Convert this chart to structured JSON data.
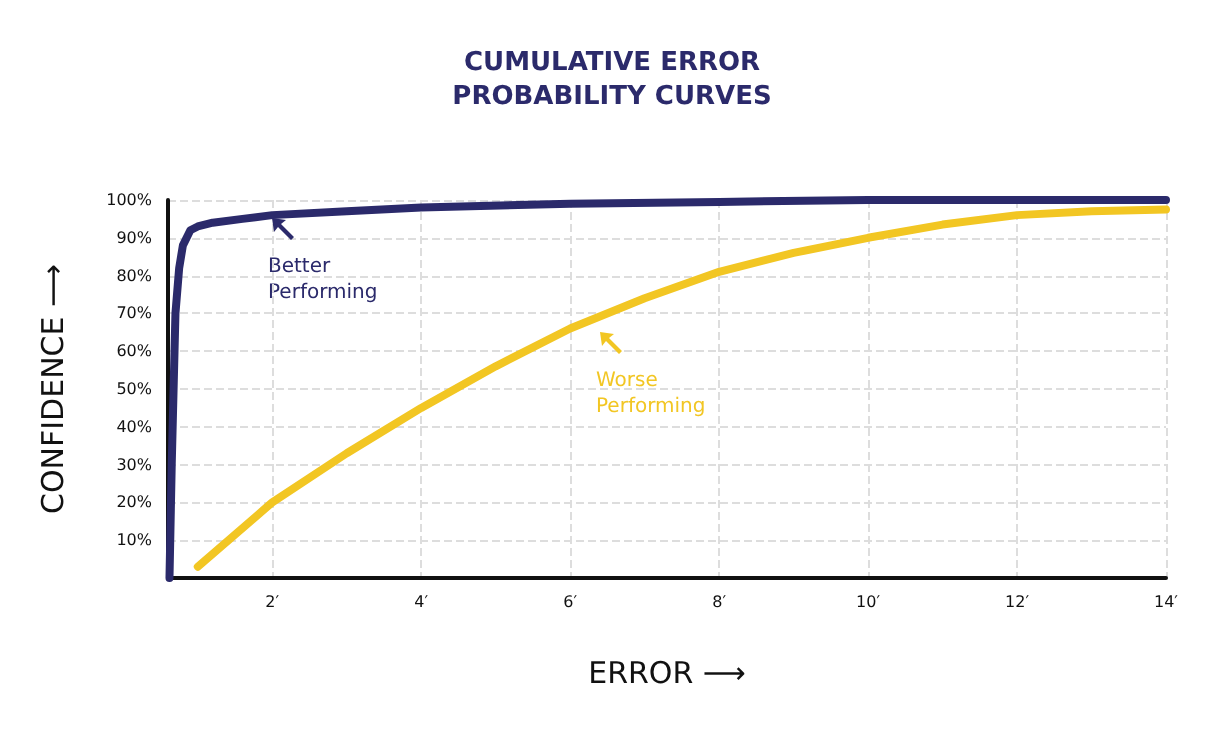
{
  "chart_data": {
    "type": "line",
    "title": "CUMULATIVE ERROR\nPROBABILITY CURVES",
    "xlabel": "ERROR ⟶",
    "ylabel": "CONFIDENCE ⟶",
    "series": [
      {
        "color": "#2b2a6b",
        "x": [
          0.62,
          0.65,
          0.7,
          0.75,
          0.8,
          0.9,
          1.0,
          1.2,
          1.6,
          2,
          3,
          4,
          6,
          8,
          10,
          12,
          14
        ],
        "values": [
          0,
          30,
          70,
          82,
          88,
          92,
          93,
          94,
          95,
          96,
          97,
          98,
          99,
          99.5,
          100,
          100,
          100
        ]
      },
      {
        "color": "#f2c623",
        "x": [
          1,
          2,
          3,
          4,
          5,
          6,
          7,
          8,
          9,
          10,
          11,
          12,
          13,
          14
        ],
        "values": [
          3,
          20,
          33,
          45,
          56,
          66,
          74,
          81,
          86,
          90,
          93.5,
          96,
          97,
          97.5
        ]
      }
    ],
    "annotations": [
      "Better\nPerforming",
      "Worse\nPerforming"
    ],
    "xlim": [
      0.6,
      14
    ],
    "ylim": [
      0,
      100
    ],
    "xticks": [
      {
        "value": 2,
        "label": "2′"
      },
      {
        "value": 4,
        "label": "4′"
      },
      {
        "value": 6,
        "label": "6′"
      },
      {
        "value": 8,
        "label": "8′"
      },
      {
        "value": 10,
        "label": "10′"
      },
      {
        "value": 12,
        "label": "12′"
      },
      {
        "value": 14,
        "label": "14′"
      }
    ],
    "yticks": [
      {
        "value": 10,
        "label": "10%"
      },
      {
        "value": 20,
        "label": "20%"
      },
      {
        "value": 30,
        "label": "30%"
      },
      {
        "value": 40,
        "label": "40%"
      },
      {
        "value": 50,
        "label": "50%"
      },
      {
        "value": 60,
        "label": "60%"
      },
      {
        "value": 70,
        "label": "70%"
      },
      {
        "value": 80,
        "label": "80%"
      },
      {
        "value": 90,
        "label": "90%"
      },
      {
        "value": 100,
        "label": "100%"
      }
    ],
    "grid": true,
    "marker": "none",
    "line_style": "solid"
  }
}
